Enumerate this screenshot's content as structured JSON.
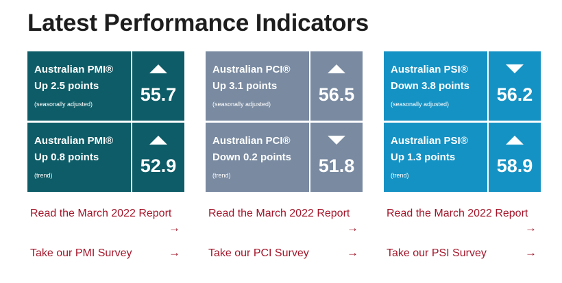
{
  "page": {
    "title": "Latest Performance Indicators"
  },
  "colors": {
    "pmi": "#0d5c67",
    "pci": "#798aa1",
    "psi": "#1592c4",
    "link": "#a3162a"
  },
  "icons": {
    "up": "triangle-up-icon",
    "down": "triangle-down-icon",
    "link_arrow": "arrow-right-icon"
  },
  "pmi": {
    "cards": [
      {
        "name": "Australian PMI®",
        "change": "Up 2.5 points",
        "note": "(seasonally adjusted)",
        "value": "55.7",
        "direction": "up"
      },
      {
        "name": "Australian PMI®",
        "change": "Up 0.8 points",
        "note": "(trend)",
        "value": "52.9",
        "direction": "up"
      }
    ],
    "report_link": "Read the March 2022 Report",
    "survey_link": "Take our PMI Survey",
    "arrow": "→"
  },
  "pci": {
    "cards": [
      {
        "name": "Australian PCI®",
        "change": "Up 3.1 points",
        "note": "(seasonally adjusted)",
        "value": "56.5",
        "direction": "up"
      },
      {
        "name": "Australian PCI®",
        "change": "Down 0.2 points",
        "note": "(trend)",
        "value": "51.8",
        "direction": "down"
      }
    ],
    "report_link": "Read the March 2022 Report",
    "survey_link": "Take our PCI Survey",
    "arrow": "→"
  },
  "psi": {
    "cards": [
      {
        "name": "Australian PSI®",
        "change": "Down 3.8 points",
        "note": "(seasonally adjusted)",
        "value": "56.2",
        "direction": "down"
      },
      {
        "name": "Australian PSI®",
        "change": "Up 1.3 points",
        "note": "(trend)",
        "value": "58.9",
        "direction": "up"
      }
    ],
    "report_link": "Read the March 2022 Report",
    "survey_link": "Take our PSI Survey",
    "arrow": "→"
  }
}
